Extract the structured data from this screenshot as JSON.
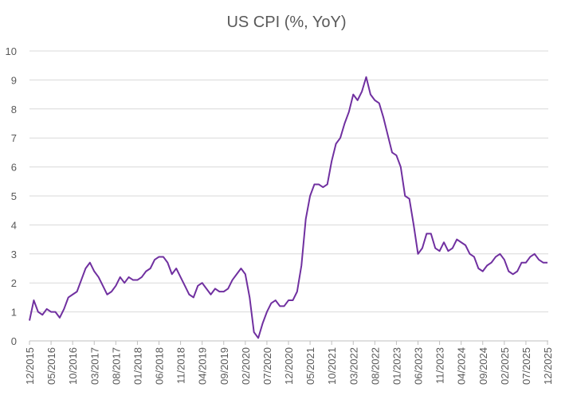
{
  "chart_data": {
    "type": "line",
    "title": "US CPI (%, YoY)",
    "xlabel": "",
    "ylabel": "",
    "ylim": [
      0,
      10
    ],
    "yticks": [
      "0",
      "1",
      "2",
      "3",
      "4",
      "5",
      "6",
      "7",
      "8",
      "9",
      "10"
    ],
    "grid": true,
    "legend": "none",
    "line_color": "#7030A0",
    "x_tick_labels": [
      "12/2015",
      "05/2016",
      "10/2016",
      "03/2017",
      "08/2017",
      "01/2018",
      "06/2018",
      "11/2018",
      "04/2019",
      "09/2019",
      "02/2020",
      "07/2020",
      "12/2020",
      "05/2021",
      "10/2021",
      "03/2022",
      "08/2022",
      "01/2023",
      "06/2023",
      "11/2023",
      "04/2024",
      "09/2024",
      "02/2025",
      "07/2025",
      "12/2025"
    ],
    "x_start": "12/2015",
    "x_end": "12/2025",
    "series": [
      {
        "name": "US CPI YoY",
        "values": [
          0.7,
          1.4,
          1.0,
          0.9,
          1.1,
          1.0,
          1.0,
          0.8,
          1.1,
          1.5,
          1.6,
          1.7,
          2.1,
          2.5,
          2.7,
          2.4,
          2.2,
          1.9,
          1.6,
          1.7,
          1.9,
          2.2,
          2.0,
          2.2,
          2.1,
          2.1,
          2.2,
          2.4,
          2.5,
          2.8,
          2.9,
          2.9,
          2.7,
          2.3,
          2.5,
          2.2,
          1.9,
          1.6,
          1.5,
          1.9,
          2.0,
          1.8,
          1.6,
          1.8,
          1.7,
          1.7,
          1.8,
          2.1,
          2.3,
          2.5,
          2.3,
          1.5,
          0.3,
          0.1,
          0.6,
          1.0,
          1.3,
          1.4,
          1.2,
          1.2,
          1.4,
          1.4,
          1.7,
          2.6,
          4.2,
          5.0,
          5.4,
          5.4,
          5.3,
          5.4,
          6.2,
          6.8,
          7.0,
          7.5,
          7.9,
          8.5,
          8.3,
          8.6,
          9.1,
          8.5,
          8.3,
          8.2,
          7.7,
          7.1,
          6.5,
          6.4,
          6.0,
          5.0,
          4.9,
          4.0,
          3.0,
          3.2,
          3.7,
          3.7,
          3.2,
          3.1,
          3.4,
          3.1,
          3.2,
          3.5,
          3.4,
          3.3,
          3.0,
          2.9,
          2.5,
          2.4,
          2.6,
          2.7,
          2.9,
          3.0,
          2.8,
          2.4,
          2.3,
          2.4,
          2.7,
          2.7,
          2.9,
          3.0,
          2.8,
          2.7,
          2.7
        ]
      }
    ]
  }
}
